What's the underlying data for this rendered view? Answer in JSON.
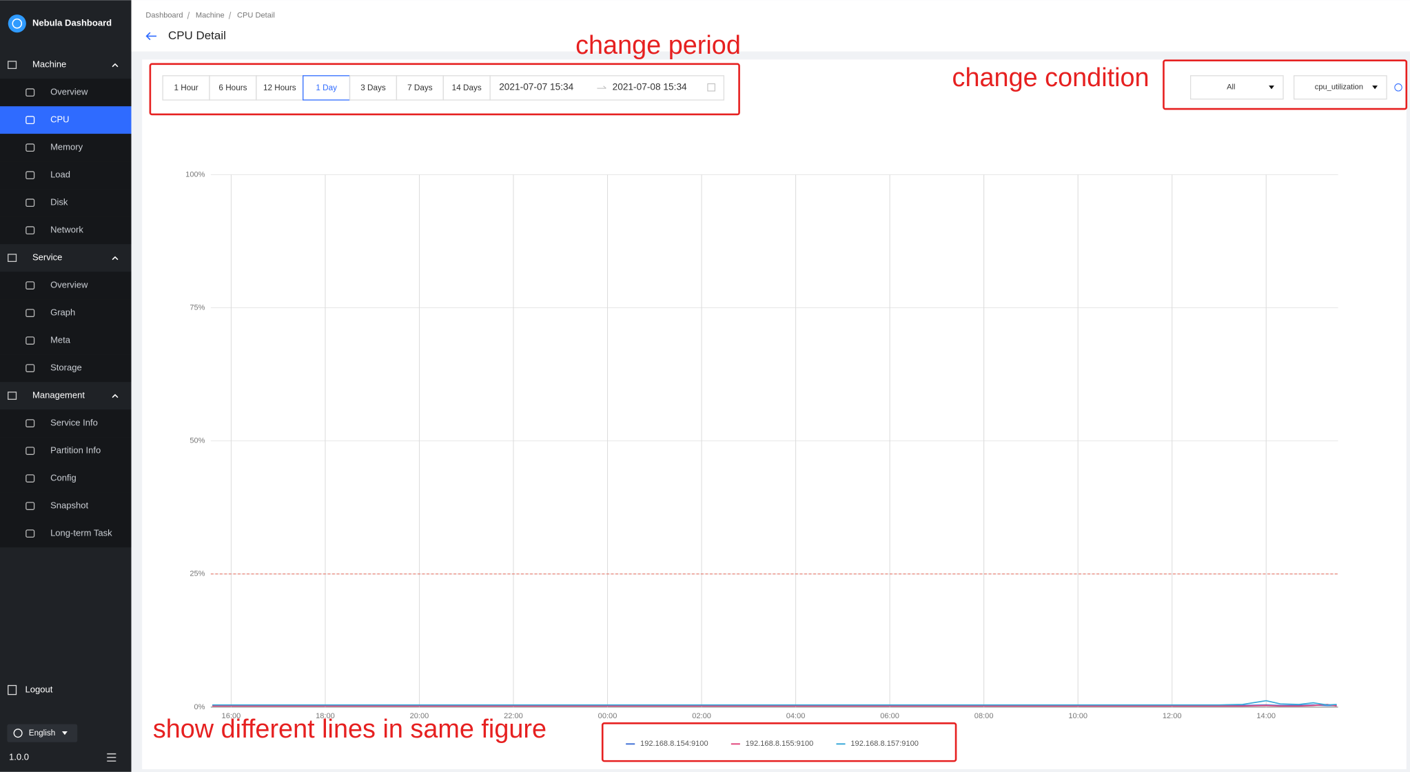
{
  "sidebar": {
    "brand": "Nebula Dashboard",
    "menu": [
      {
        "label": "Machine",
        "items": [
          {
            "label": "Overview"
          },
          {
            "label": "CPU",
            "active": true
          },
          {
            "label": "Memory"
          },
          {
            "label": "Load"
          },
          {
            "label": "Disk"
          },
          {
            "label": "Network"
          }
        ]
      },
      {
        "label": "Service",
        "items": [
          {
            "label": "Overview"
          },
          {
            "label": "Graph"
          },
          {
            "label": "Meta"
          },
          {
            "label": "Storage"
          }
        ]
      },
      {
        "label": "Management",
        "items": [
          {
            "label": "Service Info"
          },
          {
            "label": "Partition Info"
          },
          {
            "label": "Config"
          },
          {
            "label": "Snapshot"
          },
          {
            "label": "Long-term Task"
          }
        ]
      }
    ],
    "logout": "Logout",
    "language": "English",
    "version": "1.0.0"
  },
  "header": {
    "breadcrumb": [
      "Dashboard",
      "Machine",
      "CPU Detail"
    ],
    "title": "CPU Detail"
  },
  "toolbar": {
    "periods": [
      "1 Hour",
      "6 Hours",
      "12 Hours",
      "1 Day",
      "3 Days",
      "7 Days",
      "14 Days"
    ],
    "active_period": 3,
    "date_range": {
      "start": "2021-07-07 15:34",
      "end": "2021-07-08 15:34"
    },
    "selects": [
      "All",
      "cpu_utilization"
    ]
  },
  "chart_data": {
    "type": "line",
    "x": [
      15.6,
      17,
      19,
      21,
      23,
      25,
      27,
      29,
      31,
      33,
      35,
      37,
      37.5,
      38,
      38.3,
      38.7,
      39,
      39.3,
      39.5
    ],
    "series": [
      {
        "name": "192.168.8.154:9100",
        "color": "#3f6fd6",
        "values": [
          0.3,
          0.3,
          0.3,
          0.3,
          0.3,
          0.3,
          0.3,
          0.3,
          0.3,
          0.3,
          0.3,
          0.3,
          0.3,
          0.4,
          0.3,
          0.3,
          0.4,
          0.3,
          0.3
        ]
      },
      {
        "name": "192.168.8.155:9100",
        "color": "#e0457b",
        "values": [
          0.2,
          0.2,
          0.2,
          0.2,
          0.2,
          0.2,
          0.2,
          0.2,
          0.2,
          0.2,
          0.2,
          0.2,
          0.2,
          0.3,
          0.2,
          0.2,
          0.3,
          0.5,
          0.2
        ]
      },
      {
        "name": "192.168.8.157:9100",
        "color": "#35a7d8",
        "values": [
          0.4,
          0.4,
          0.4,
          0.4,
          0.4,
          0.4,
          0.4,
          0.4,
          0.4,
          0.4,
          0.4,
          0.4,
          0.5,
          1.2,
          0.6,
          0.5,
          0.8,
          0.4,
          0.5
        ]
      }
    ],
    "xlim": [
      15.567,
      39.567
    ],
    "xticks": [
      {
        "value": 16,
        "label": "16:00"
      },
      {
        "value": 18,
        "label": "18:00"
      },
      {
        "value": 20,
        "label": "20:00"
      },
      {
        "value": 22,
        "label": "22:00"
      },
      {
        "value": 24,
        "label": "00:00"
      },
      {
        "value": 26,
        "label": "02:00"
      },
      {
        "value": 28,
        "label": "04:00"
      },
      {
        "value": 30,
        "label": "06:00"
      },
      {
        "value": 32,
        "label": "08:00"
      },
      {
        "value": 34,
        "label": "10:00"
      },
      {
        "value": 36,
        "label": "12:00"
      },
      {
        "value": 38,
        "label": "14:00"
      }
    ],
    "ylim": [
      0,
      100
    ],
    "yticks": [
      {
        "value": 0,
        "label": "0%"
      },
      {
        "value": 25,
        "label": "25%"
      },
      {
        "value": 50,
        "label": "50%"
      },
      {
        "value": 75,
        "label": "75%"
      },
      {
        "value": 100,
        "label": "100%"
      }
    ],
    "threshold": 25,
    "threshold_color": "#e8776a",
    "grid": true,
    "legend": "bottom"
  },
  "annotations": [
    {
      "text": "change period"
    },
    {
      "text": "change condition"
    },
    {
      "text": "show different lines in same figure"
    }
  ]
}
